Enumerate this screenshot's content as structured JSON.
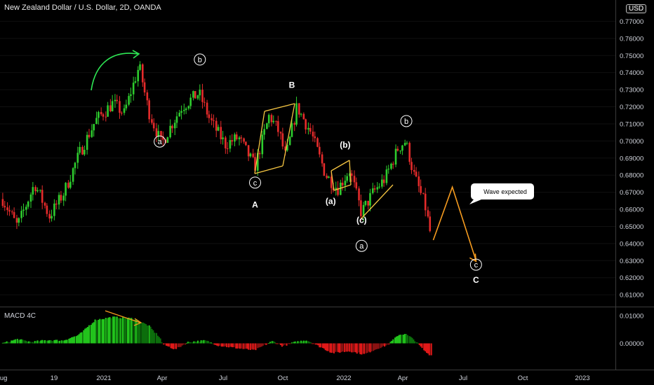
{
  "header": {
    "title": "New Zealand Dollar / U.S. Dollar, 2D, OANDA",
    "currency": "USD"
  },
  "indicator": {
    "label": "MACD 4C"
  },
  "callout": {
    "text": "Wave expected"
  },
  "colors": {
    "up": "#2ecc2e",
    "down": "#e52b2b",
    "accent": "#f59b1f",
    "curve": "#2ee855"
  },
  "chart_data": [
    {
      "type": "candlestick",
      "title": "New Zealand Dollar / U.S. Dollar, 2D, OANDA",
      "x_ticks": [
        "Aug",
        "19",
        "2021",
        "Apr",
        "Jul",
        "Oct",
        "2022",
        "Apr",
        "Jul",
        "Oct",
        "2023"
      ],
      "y_ticks": [
        0.61,
        0.62,
        0.63,
        0.64,
        0.65,
        0.66,
        0.67,
        0.68,
        0.69,
        0.7,
        0.71,
        0.72,
        0.73,
        0.74,
        0.75,
        0.76,
        0.77
      ],
      "ylim": [
        0.605,
        0.78
      ],
      "price_path": [
        {
          "date": "2020-08-03",
          "price": 0.666
        },
        {
          "date": "2020-08-25",
          "price": 0.65
        },
        {
          "date": "2020-09-20",
          "price": 0.675
        },
        {
          "date": "2020-10-12",
          "price": 0.656
        },
        {
          "date": "2020-11-03",
          "price": 0.67
        },
        {
          "date": "2020-11-25",
          "price": 0.692
        },
        {
          "date": "2020-12-20",
          "price": 0.712
        },
        {
          "date": "2021-01-15",
          "price": 0.722
        },
        {
          "date": "2021-02-01",
          "price": 0.716
        },
        {
          "date": "2021-02-24",
          "price": 0.744
        },
        {
          "date": "2021-03-10",
          "price": 0.718
        },
        {
          "date": "2021-03-30",
          "price": 0.698
        },
        {
          "date": "2021-04-12",
          "price": 0.708
        },
        {
          "date": "2021-04-30",
          "price": 0.72
        },
        {
          "date": "2021-05-26",
          "price": 0.728
        },
        {
          "date": "2021-06-12",
          "price": 0.712
        },
        {
          "date": "2021-07-05",
          "price": 0.698
        },
        {
          "date": "2021-07-25",
          "price": 0.702
        },
        {
          "date": "2021-08-19",
          "price": 0.685
        },
        {
          "date": "2021-09-10",
          "price": 0.715
        },
        {
          "date": "2021-09-25",
          "price": 0.705
        },
        {
          "date": "2021-10-05",
          "price": 0.69
        },
        {
          "date": "2021-10-22",
          "price": 0.72
        },
        {
          "date": "2021-11-12",
          "price": 0.705
        },
        {
          "date": "2021-12-05",
          "price": 0.68
        },
        {
          "date": "2021-12-23",
          "price": 0.672
        },
        {
          "date": "2022-01-10",
          "price": 0.683
        },
        {
          "date": "2022-01-28",
          "price": 0.658
        },
        {
          "date": "2022-02-15",
          "price": 0.67
        },
        {
          "date": "2022-03-05",
          "price": 0.678
        },
        {
          "date": "2022-03-25",
          "price": 0.696
        },
        {
          "date": "2022-04-05",
          "price": 0.7
        },
        {
          "date": "2022-04-18",
          "price": 0.68
        },
        {
          "date": "2022-05-05",
          "price": 0.662
        },
        {
          "date": "2022-05-15",
          "price": 0.642
        }
      ],
      "projection": [
        {
          "date": "2022-05-17",
          "price": 0.642
        },
        {
          "date": "2022-06-15",
          "price": 0.673
        },
        {
          "date": "2022-07-21",
          "price": 0.63
        }
      ],
      "annotations": [
        {
          "text": "a",
          "date": "2021-03-27",
          "price": 0.698,
          "circled": true
        },
        {
          "text": "b",
          "date": "2021-05-27",
          "price": 0.746,
          "circled": true
        },
        {
          "text": "c",
          "date": "2021-08-19",
          "price": 0.674,
          "circled": true
        },
        {
          "text": "A",
          "date": "2021-08-19",
          "price": 0.661,
          "circled": false
        },
        {
          "text": "B",
          "date": "2021-10-14",
          "price": 0.731,
          "circled": false
        },
        {
          "text": "(b)",
          "date": "2022-01-03",
          "price": 0.696,
          "circled": false
        },
        {
          "text": "(a)",
          "date": "2021-12-12",
          "price": 0.663,
          "circled": false
        },
        {
          "text": "(c)",
          "date": "2022-01-28",
          "price": 0.652,
          "circled": false
        },
        {
          "text": "a",
          "date": "2022-01-28",
          "price": 0.637,
          "circled": true
        },
        {
          "text": "b",
          "date": "2022-04-06",
          "price": 0.71,
          "circled": true
        },
        {
          "text": "c",
          "date": "2022-07-21",
          "price": 0.626,
          "circled": true
        },
        {
          "text": "C",
          "date": "2022-07-21",
          "price": 0.617,
          "circled": false
        }
      ]
    },
    {
      "type": "histogram",
      "title": "MACD 4C",
      "y_ticks": [
        0.0,
        0.01
      ],
      "ylim": [
        -0.0045,
        0.0115
      ],
      "profile": [
        {
          "date": "2020-08-03",
          "value": 0.0
        },
        {
          "date": "2020-08-25",
          "value": 0.0015
        },
        {
          "date": "2020-09-15",
          "value": 0.0005
        },
        {
          "date": "2020-10-10",
          "value": 0.0012
        },
        {
          "date": "2020-11-01",
          "value": 0.001
        },
        {
          "date": "2020-11-25",
          "value": 0.003
        },
        {
          "date": "2020-12-20",
          "value": 0.0085
        },
        {
          "date": "2021-01-15",
          "value": 0.0095
        },
        {
          "date": "2021-02-15",
          "value": 0.009
        },
        {
          "date": "2021-03-10",
          "value": 0.0065
        },
        {
          "date": "2021-03-28",
          "value": 0.002
        },
        {
          "date": "2021-04-01",
          "value": -0.0003
        },
        {
          "date": "2021-04-20",
          "value": -0.0022
        },
        {
          "date": "2021-05-10",
          "value": 0.0005
        },
        {
          "date": "2021-06-05",
          "value": 0.001
        },
        {
          "date": "2021-06-25",
          "value": -0.0008
        },
        {
          "date": "2021-07-25",
          "value": -0.0018
        },
        {
          "date": "2021-08-19",
          "value": -0.0025
        },
        {
          "date": "2021-09-15",
          "value": 0.0008
        },
        {
          "date": "2021-09-30",
          "value": -0.001
        },
        {
          "date": "2021-10-20",
          "value": 0.0005
        },
        {
          "date": "2021-11-05",
          "value": 0.0012
        },
        {
          "date": "2021-11-20",
          "value": -0.0005
        },
        {
          "date": "2021-12-15",
          "value": -0.0035
        },
        {
          "date": "2022-01-10",
          "value": -0.0028
        },
        {
          "date": "2022-02-01",
          "value": -0.004
        },
        {
          "date": "2022-02-20",
          "value": -0.002
        },
        {
          "date": "2022-03-10",
          "value": -0.0005
        },
        {
          "date": "2022-03-25",
          "value": 0.003
        },
        {
          "date": "2022-04-05",
          "value": 0.0035
        },
        {
          "date": "2022-04-20",
          "value": 0.001
        },
        {
          "date": "2022-05-05",
          "value": -0.003
        },
        {
          "date": "2022-05-15",
          "value": -0.0045
        }
      ]
    }
  ]
}
